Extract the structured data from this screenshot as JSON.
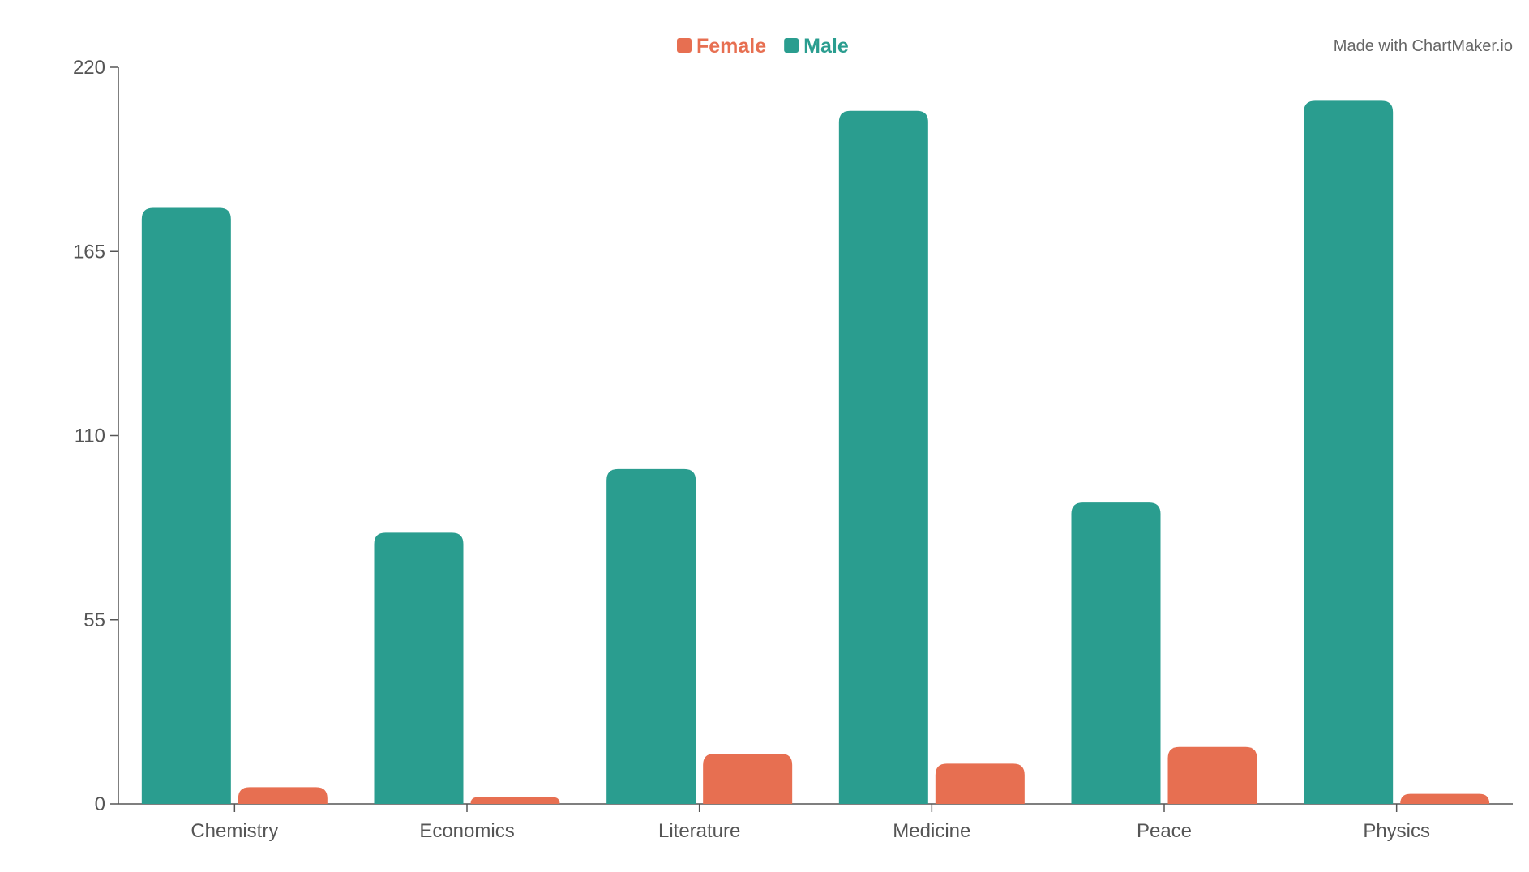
{
  "chart_data": {
    "type": "bar",
    "categories": [
      "Chemistry",
      "Economics",
      "Literature",
      "Medicine",
      "Peace",
      "Physics"
    ],
    "series": [
      {
        "name": "Male",
        "color": "#2a9d8f",
        "values": [
          178,
          81,
          100,
          207,
          90,
          210
        ]
      },
      {
        "name": "Female",
        "color": "#e76f51",
        "values": [
          5,
          2,
          15,
          12,
          17,
          3
        ]
      }
    ],
    "legend": {
      "placement": "top-center",
      "order": [
        "Female",
        "Male"
      ]
    },
    "ylim": [
      0,
      220
    ],
    "yticks": [
      0,
      55,
      110,
      165,
      220
    ],
    "grid": false,
    "title": "",
    "xlabel": "",
    "ylabel": ""
  },
  "credit": "Made with ChartMaker.io"
}
